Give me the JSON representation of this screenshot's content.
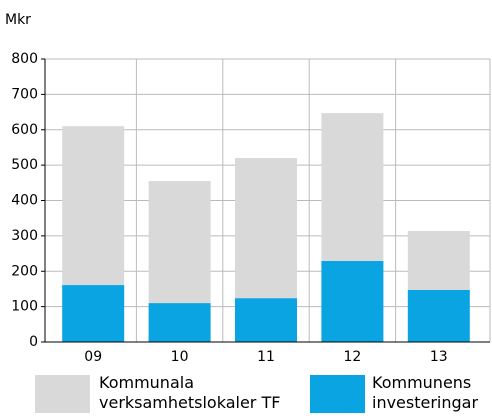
{
  "chart_data": {
    "type": "stacked_bar",
    "y_label": "Mkr",
    "categories": [
      "09",
      "10",
      "11",
      "12",
      "13"
    ],
    "series": [
      {
        "name": "Kommunens investeringar",
        "color": "#0aa4e2",
        "values": [
          161,
          110,
          124,
          229,
          147
        ]
      },
      {
        "name": "Kommunala verksamhetslokaler TF",
        "color": "#d9d9d9",
        "values": [
          449,
          345,
          396,
          418,
          167
        ]
      }
    ],
    "ylim": [
      0,
      800
    ],
    "yticks": [
      0,
      100,
      200,
      300,
      400,
      500,
      600,
      700,
      800
    ],
    "grid": true
  }
}
